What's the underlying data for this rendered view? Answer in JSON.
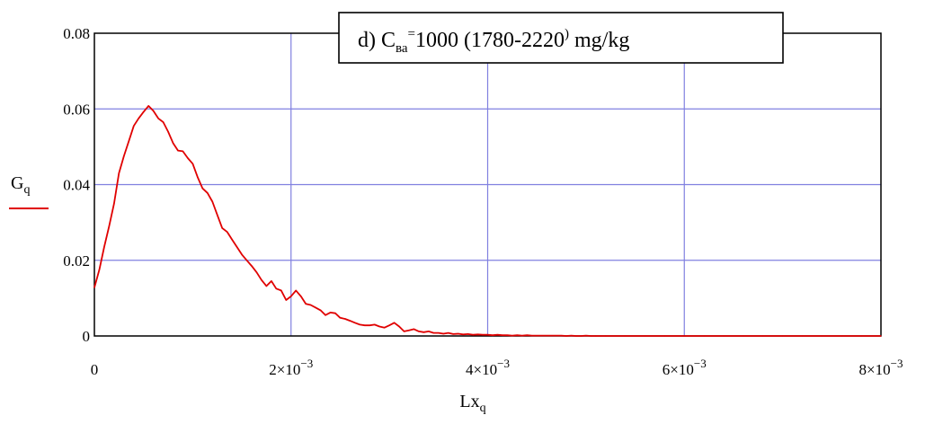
{
  "chart_data": {
    "type": "line",
    "title": {
      "prefix": "d) C",
      "subscript": "ва",
      "superscript": "=",
      "main": "1000 (1780-2220",
      "superscript2": ")",
      "suffix": " mg/kg"
    },
    "xlabel": {
      "base": "Lx",
      "subscript": "q"
    },
    "ylabel": {
      "base": "G",
      "subscript": "q"
    },
    "xlim": [
      0,
      0.008
    ],
    "ylim": [
      0,
      0.08
    ],
    "grid": true,
    "x_ticks": [
      {
        "value": 0,
        "mantissa": "0",
        "exponent": ""
      },
      {
        "value": 0.002,
        "mantissa": "2×10",
        "exponent": "−3"
      },
      {
        "value": 0.004,
        "mantissa": "4×10",
        "exponent": "−3"
      },
      {
        "value": 0.006,
        "mantissa": "6×10",
        "exponent": "−3"
      },
      {
        "value": 0.008,
        "mantissa": "8×10",
        "exponent": "−3"
      }
    ],
    "y_ticks": [
      {
        "value": 0,
        "label": "0"
      },
      {
        "value": 0.02,
        "label": "0.02"
      },
      {
        "value": 0.04,
        "label": "0.04"
      },
      {
        "value": 0.06,
        "label": "0.06"
      },
      {
        "value": 0.08,
        "label": "0.08"
      }
    ],
    "series": [
      {
        "color": "#e00000",
        "x": [
          0.0,
          5e-05,
          0.0001,
          0.00015,
          0.0002,
          0.00025,
          0.0003,
          0.00035,
          0.0004,
          0.00045,
          0.0005,
          0.00055,
          0.0006,
          0.00065,
          0.0007,
          0.00075,
          0.0008,
          0.00085,
          0.0009,
          0.00095,
          0.001,
          0.00105,
          0.0011,
          0.00115,
          0.0012,
          0.00125,
          0.0013,
          0.00135,
          0.0014,
          0.00145,
          0.0015,
          0.00155,
          0.0016,
          0.00165,
          0.0017,
          0.00175,
          0.0018,
          0.00185,
          0.0019,
          0.00195,
          0.002,
          0.00205,
          0.0021,
          0.00215,
          0.0022,
          0.00225,
          0.0023,
          0.00235,
          0.0024,
          0.00245,
          0.0025,
          0.00255,
          0.0026,
          0.00265,
          0.0027,
          0.00275,
          0.0028,
          0.00285,
          0.0029,
          0.00295,
          0.003,
          0.00305,
          0.0031,
          0.00315,
          0.0032,
          0.00325,
          0.0033,
          0.00335,
          0.0034,
          0.00345,
          0.0035,
          0.00355,
          0.0036,
          0.00365,
          0.0037,
          0.00375,
          0.0038,
          0.00385,
          0.0039,
          0.00395,
          0.004,
          0.00405,
          0.0041,
          0.00415,
          0.0042,
          0.00425,
          0.0043,
          0.00435,
          0.0044,
          0.00445,
          0.0045,
          0.00455,
          0.0046,
          0.00465,
          0.0047,
          0.00475,
          0.0048,
          0.00485,
          0.0049,
          0.00495,
          0.005,
          0.00505,
          0.0051,
          0.00515,
          0.0052,
          0.0054,
          0.0056,
          0.0058,
          0.006,
          0.0062,
          0.0064,
          0.0066,
          0.0068,
          0.007,
          0.0072,
          0.0074,
          0.0076,
          0.0078,
          0.008
        ],
        "y": [
          0.0128,
          0.0175,
          0.0235,
          0.029,
          0.035,
          0.043,
          0.0475,
          0.0515,
          0.0555,
          0.0575,
          0.0592,
          0.0608,
          0.0595,
          0.0575,
          0.0565,
          0.054,
          0.051,
          0.049,
          0.0488,
          0.047,
          0.0455,
          0.042,
          0.039,
          0.0378,
          0.0355,
          0.032,
          0.0285,
          0.0275,
          0.0255,
          0.0235,
          0.0215,
          0.02,
          0.0185,
          0.0168,
          0.0148,
          0.0132,
          0.0145,
          0.0125,
          0.012,
          0.0095,
          0.0105,
          0.012,
          0.0105,
          0.0085,
          0.0082,
          0.0075,
          0.0068,
          0.0055,
          0.0062,
          0.006,
          0.0048,
          0.0045,
          0.004,
          0.0035,
          0.003,
          0.0028,
          0.0028,
          0.003,
          0.0025,
          0.0022,
          0.0028,
          0.0035,
          0.0025,
          0.0012,
          0.0015,
          0.0018,
          0.0012,
          0.001,
          0.0012,
          0.0008,
          0.0008,
          0.0006,
          0.0008,
          0.0005,
          0.0006,
          0.0004,
          0.0005,
          0.0003,
          0.0004,
          0.0003,
          0.0003,
          0.0002,
          0.0003,
          0.0002,
          0.0002,
          0.0001,
          0.0002,
          0.0001,
          0.0002,
          0.0001,
          0.0001,
          0.0001,
          0.0001,
          0.0001,
          0.0001,
          0.0001,
          0.0,
          0.0001,
          0.0,
          0.0,
          0.0001,
          0.0,
          0.0,
          0.0,
          0.0,
          0.0,
          0.0,
          0.0,
          0.0,
          0.0,
          0.0,
          0.0,
          0.0,
          0.0,
          0.0,
          0.0,
          0.0,
          0.0,
          0.0
        ]
      }
    ]
  }
}
